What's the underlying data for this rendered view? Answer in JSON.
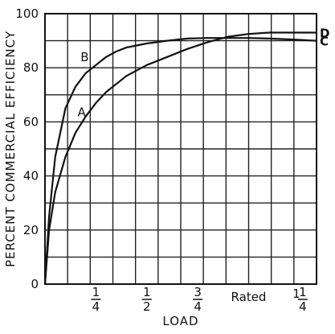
{
  "chart_data": {
    "type": "line",
    "title": "",
    "xlabel": "LOAD",
    "ylabel": "PERCENT COMMERCIAL EFFICIENCY",
    "xlim": [
      0,
      1.3333
    ],
    "ylim": [
      0,
      100
    ],
    "grid": true,
    "legend": "none",
    "y_ticks": [
      {
        "value": 0,
        "label": "0"
      },
      {
        "value": 20,
        "label": "20"
      },
      {
        "value": 40,
        "label": "40"
      },
      {
        "value": 60,
        "label": "60"
      },
      {
        "value": 80,
        "label": "80"
      },
      {
        "value": 100,
        "label": "100"
      }
    ],
    "x_ticks": [
      {
        "value": 0.25,
        "label": "1/4"
      },
      {
        "value": 0.5,
        "label": "1/2"
      },
      {
        "value": 0.75,
        "label": "3/4"
      },
      {
        "value": 1.0,
        "label": "Rated"
      },
      {
        "value": 1.25,
        "label": "1 1/4"
      }
    ],
    "series": [
      {
        "name": "A",
        "label_at": {
          "x": 0.18,
          "y": 62
        },
        "points": [
          [
            0,
            0
          ],
          [
            0.02,
            20
          ],
          [
            0.05,
            34
          ],
          [
            0.1,
            47
          ],
          [
            0.15,
            56
          ],
          [
            0.2,
            62
          ],
          [
            0.25,
            67
          ],
          [
            0.3,
            71
          ],
          [
            0.4,
            77
          ],
          [
            0.5,
            81
          ],
          [
            0.6,
            84
          ],
          [
            0.7,
            87
          ],
          [
            0.8,
            89.5
          ],
          [
            0.9,
            91.5
          ],
          [
            1.0,
            92.5
          ],
          [
            1.1,
            93
          ],
          [
            1.2,
            93
          ],
          [
            1.3333,
            93
          ]
        ]
      },
      {
        "name": "B",
        "label_at": {
          "x": 0.195,
          "y": 82.5
        },
        "points": [
          [
            0,
            0
          ],
          [
            0.02,
            25
          ],
          [
            0.05,
            47
          ],
          [
            0.1,
            65
          ],
          [
            0.15,
            73
          ],
          [
            0.2,
            78
          ],
          [
            0.25,
            81
          ],
          [
            0.3,
            84
          ],
          [
            0.35,
            86
          ],
          [
            0.4,
            87.5
          ],
          [
            0.5,
            89
          ],
          [
            0.6,
            90
          ],
          [
            0.7,
            90.8
          ],
          [
            0.8,
            91
          ],
          [
            0.9,
            91
          ],
          [
            1.0,
            91
          ],
          [
            1.1,
            90.8
          ],
          [
            1.2,
            90.5
          ],
          [
            1.3333,
            90
          ]
        ]
      }
    ],
    "end_labels": [
      {
        "text": "D",
        "series": "A"
      },
      {
        "text": "C",
        "series": "B"
      }
    ]
  }
}
